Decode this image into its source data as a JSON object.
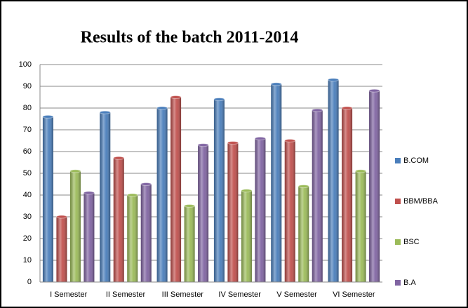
{
  "chart_data": {
    "type": "bar",
    "title": "Results of the batch 2011-2014",
    "categories": [
      "I Semester",
      "II Semester",
      "III Semester",
      "IV Semester",
      "V Semester",
      "VI Semester"
    ],
    "series": [
      {
        "name": "B.COM",
        "color": "#4a7ebb",
        "values": [
          76,
          78,
          80,
          84,
          91,
          93
        ]
      },
      {
        "name": "BBM/BBA",
        "color": "#c0504d",
        "values": [
          30,
          57,
          85,
          64,
          65,
          80
        ]
      },
      {
        "name": "BSC",
        "color": "#9bbb59",
        "values": [
          51,
          40,
          35,
          42,
          44,
          51
        ]
      },
      {
        "name": "B.A",
        "color": "#8064a2",
        "values": [
          41,
          45,
          63,
          66,
          79,
          88
        ]
      }
    ],
    "ylim": [
      0,
      100
    ],
    "yticks": [
      0,
      10,
      20,
      30,
      40,
      50,
      60,
      70,
      80,
      90,
      100
    ],
    "grid": true,
    "legend": "right"
  }
}
